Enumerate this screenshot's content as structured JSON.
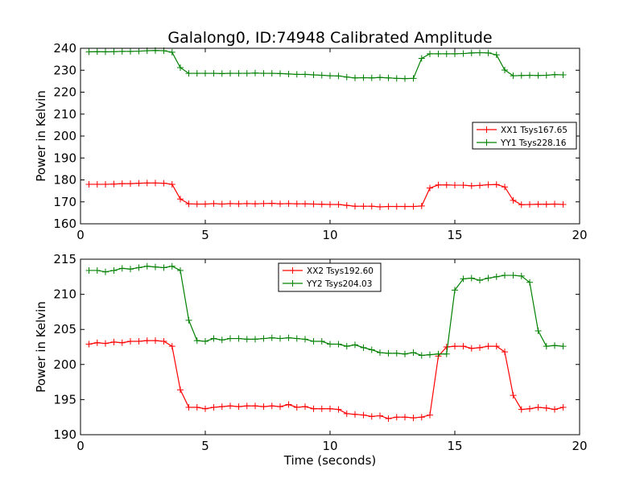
{
  "title": "Galalong0, ID:74948 Calibrated Amplitude",
  "chart_data": [
    {
      "type": "line",
      "xlabel": "",
      "ylabel": "Power in Kelvin",
      "xlim": [
        0,
        20
      ],
      "ylim": [
        160,
        240
      ],
      "xticks": [
        "0",
        "5",
        "10",
        "15",
        "20"
      ],
      "yticks": [
        "160",
        "170",
        "180",
        "190",
        "200",
        "210",
        "220",
        "230",
        "240"
      ],
      "grid": false,
      "legend_position": "right",
      "x": [
        0.34,
        0.67,
        1.0,
        1.34,
        1.67,
        2.0,
        2.34,
        2.67,
        3.0,
        3.34,
        3.67,
        4.0,
        4.34,
        4.67,
        5.0,
        5.34,
        5.67,
        6.0,
        6.34,
        6.67,
        7.0,
        7.34,
        7.67,
        8.0,
        8.34,
        8.67,
        9.0,
        9.34,
        9.67,
        10.0,
        10.34,
        10.67,
        11.0,
        11.34,
        11.67,
        12.0,
        12.34,
        12.67,
        13.0,
        13.34,
        13.67,
        14.0,
        14.34,
        14.67,
        15.0,
        15.34,
        15.67,
        16.0,
        16.34,
        16.67,
        17.0,
        17.34,
        17.67,
        18.0,
        18.34,
        18.67,
        19.0,
        19.34
      ],
      "series": [
        {
          "name": "XX1 Tsys167.65",
          "color": "#ff0000",
          "values": [
            178.0,
            178.0,
            178.0,
            178.1,
            178.3,
            178.3,
            178.5,
            178.6,
            178.6,
            178.5,
            178.0,
            171.3,
            169.1,
            169.0,
            169.0,
            169.2,
            169.0,
            169.2,
            169.1,
            169.2,
            169.1,
            169.2,
            169.3,
            169.1,
            169.2,
            169.1,
            169.1,
            169.0,
            168.9,
            168.8,
            168.8,
            168.4,
            168.0,
            168.0,
            168.0,
            167.7,
            167.9,
            167.9,
            167.9,
            167.9,
            168.1,
            176.3,
            177.7,
            177.7,
            177.6,
            177.6,
            177.3,
            177.5,
            177.8,
            177.9,
            176.8,
            170.7,
            168.7,
            168.8,
            168.9,
            168.9,
            169.0,
            168.8
          ]
        },
        {
          "name": "YY1 Tsys228.16",
          "color": "#008000",
          "values": [
            238.4,
            238.5,
            238.4,
            238.5,
            238.6,
            238.6,
            238.7,
            238.9,
            239.0,
            238.9,
            238.2,
            231.2,
            228.6,
            228.6,
            228.6,
            228.6,
            228.5,
            228.6,
            228.6,
            228.6,
            228.7,
            228.6,
            228.6,
            228.5,
            228.3,
            228.1,
            228.1,
            227.9,
            227.7,
            227.5,
            227.4,
            226.9,
            226.5,
            226.6,
            226.5,
            226.7,
            226.5,
            226.3,
            226.2,
            226.3,
            235.4,
            237.5,
            237.5,
            237.5,
            237.5,
            237.6,
            237.9,
            238.0,
            237.9,
            237.0,
            230.1,
            227.5,
            227.6,
            227.7,
            227.6,
            227.7,
            228.0,
            227.9
          ]
        }
      ]
    },
    {
      "type": "line",
      "xlabel": "Time (seconds)",
      "ylabel": "Power in Kelvin",
      "xlim": [
        0,
        20
      ],
      "ylim": [
        190,
        215
      ],
      "xticks": [
        "0",
        "5",
        "10",
        "15",
        "20"
      ],
      "yticks": [
        "190",
        "195",
        "200",
        "205",
        "210",
        "215"
      ],
      "grid": false,
      "legend_position": "top-center",
      "x": [
        0.34,
        0.67,
        1.0,
        1.34,
        1.67,
        2.0,
        2.34,
        2.67,
        3.0,
        3.34,
        3.67,
        4.0,
        4.34,
        4.67,
        5.0,
        5.34,
        5.67,
        6.0,
        6.34,
        6.67,
        7.0,
        7.34,
        7.67,
        8.0,
        8.34,
        8.67,
        9.0,
        9.34,
        9.67,
        10.0,
        10.34,
        10.67,
        11.0,
        11.34,
        11.67,
        12.0,
        12.34,
        12.67,
        13.0,
        13.34,
        13.67,
        14.0,
        14.34,
        14.67,
        15.0,
        15.34,
        15.67,
        16.0,
        16.34,
        16.67,
        17.0,
        17.34,
        17.67,
        18.0,
        18.34,
        18.67,
        19.0,
        19.34
      ],
      "series": [
        {
          "name": "XX2 Tsys192.60",
          "color": "#ff0000",
          "values": [
            202.9,
            203.1,
            203.0,
            203.2,
            203.1,
            203.3,
            203.3,
            203.4,
            203.4,
            203.3,
            202.6,
            196.4,
            193.9,
            193.9,
            193.7,
            193.9,
            194.0,
            194.1,
            194.0,
            194.1,
            194.1,
            194.0,
            194.1,
            194.0,
            194.3,
            193.9,
            194.0,
            193.7,
            193.7,
            193.7,
            193.6,
            193.0,
            192.9,
            192.8,
            192.6,
            192.7,
            192.3,
            192.5,
            192.5,
            192.4,
            192.5,
            192.8,
            201.2,
            202.5,
            202.6,
            202.6,
            202.3,
            202.4,
            202.6,
            202.6,
            201.8,
            195.6,
            193.6,
            193.7,
            193.9,
            193.8,
            193.6,
            193.9
          ]
        },
        {
          "name": "YY2 Tsys204.03",
          "color": "#008000",
          "values": [
            213.4,
            213.4,
            213.2,
            213.4,
            213.7,
            213.6,
            213.8,
            214.0,
            213.9,
            213.8,
            214.0,
            213.4,
            206.3,
            203.4,
            203.3,
            203.7,
            203.5,
            203.7,
            203.7,
            203.6,
            203.6,
            203.7,
            203.8,
            203.7,
            203.8,
            203.7,
            203.6,
            203.3,
            203.3,
            202.9,
            202.9,
            202.6,
            202.8,
            202.4,
            202.1,
            201.7,
            201.6,
            201.6,
            201.5,
            201.7,
            201.3,
            201.4,
            201.5,
            201.5,
            210.6,
            212.2,
            212.3,
            212.0,
            212.3,
            212.5,
            212.7,
            212.7,
            212.6,
            211.7,
            204.8,
            202.6,
            202.7,
            202.6
          ]
        }
      ]
    }
  ]
}
